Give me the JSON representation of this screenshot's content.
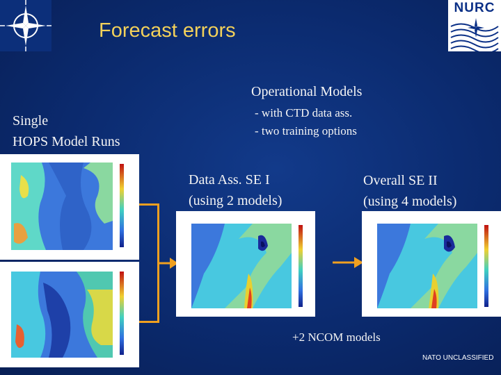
{
  "slide": {
    "title": "Forecast errors",
    "operational_title": "Operational Models",
    "operational_items": [
      "- with CTD data ass.",
      "- two training options"
    ],
    "single_line1": "Single",
    "single_line2": "HOPS Model Runs",
    "data_ass_line1": "Data Ass. SE I",
    "data_ass_line2": "(using 2 models)",
    "overall_line1": "Overall SE II",
    "overall_line2": "(using 4 models)",
    "ncom_note": "+2 NCOM models",
    "classification": "NATO UNCLASSIFIED"
  },
  "logos": {
    "left": "nato-compass-rose-logo",
    "right_text": "NURC"
  },
  "colors": {
    "background": "#0b2a6e",
    "title": "#f3d15a",
    "text": "#f4f4f4",
    "connector": "#f0a020"
  }
}
